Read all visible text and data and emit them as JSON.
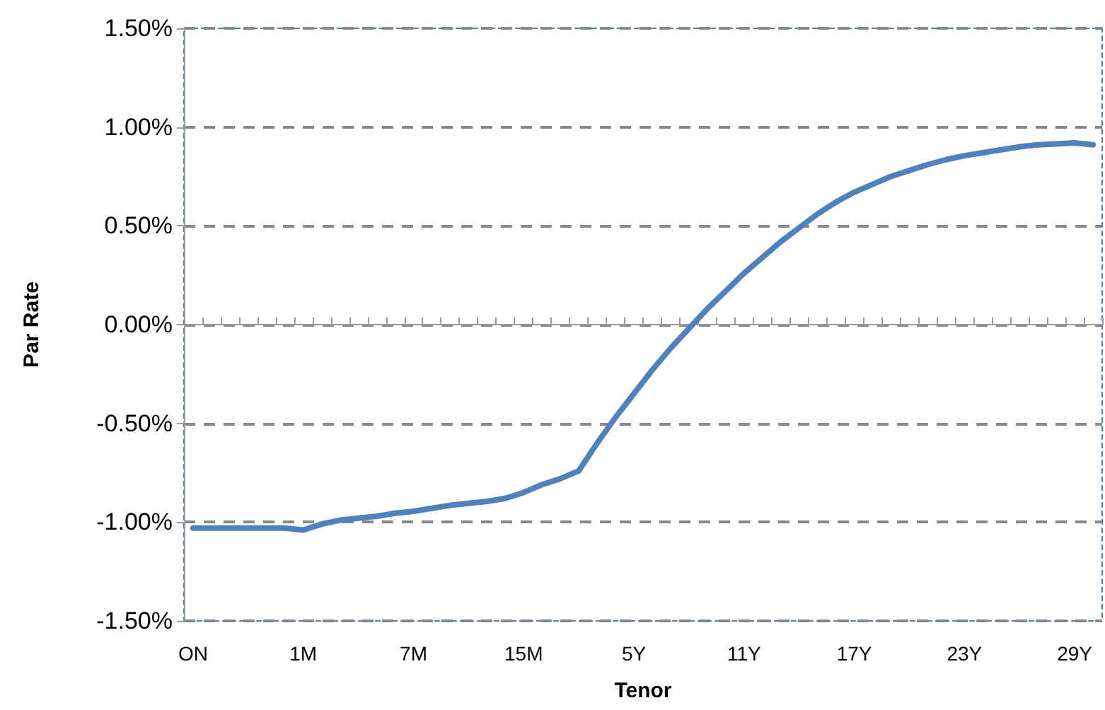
{
  "chart_data": {
    "type": "line",
    "xlabel": "Tenor",
    "ylabel": "Par Rate",
    "categories": [
      "ON",
      null,
      null,
      null,
      null,
      null,
      "1M",
      null,
      null,
      null,
      null,
      null,
      "7M",
      null,
      null,
      null,
      null,
      null,
      "15M",
      null,
      null,
      null,
      null,
      null,
      "5Y",
      null,
      null,
      null,
      null,
      null,
      "11Y",
      null,
      null,
      null,
      null,
      null,
      "17Y",
      null,
      null,
      null,
      null,
      null,
      "23Y",
      null,
      null,
      null,
      null,
      null,
      "29Y",
      null
    ],
    "series": [
      {
        "color": "#4f81bd",
        "values": [
          -1.03,
          -1.03,
          -1.03,
          -1.03,
          -1.03,
          -1.03,
          -1.04,
          -1.01,
          -0.99,
          -0.98,
          -0.97,
          -0.955,
          -0.945,
          -0.93,
          -0.915,
          -0.905,
          -0.895,
          -0.88,
          -0.85,
          -0.81,
          -0.78,
          -0.74,
          -0.6,
          -0.47,
          -0.35,
          -0.23,
          -0.12,
          -0.02,
          0.08,
          0.17,
          0.26,
          0.34,
          0.42,
          0.49,
          0.56,
          0.62,
          0.67,
          0.71,
          0.75,
          0.78,
          0.81,
          0.835,
          0.855,
          0.87,
          0.885,
          0.9,
          0.91,
          0.915,
          0.92,
          0.91
        ]
      }
    ],
    "ylim": [
      -1.5,
      1.5
    ],
    "yticks": [
      {
        "value": -1.5,
        "label": "-1.50%"
      },
      {
        "value": -1,
        "label": "-1.00%"
      },
      {
        "value": -0.5,
        "label": "-0.50%"
      },
      {
        "value": 0,
        "label": "0.00%"
      },
      {
        "value": 0.5,
        "label": "0.50%"
      },
      {
        "value": 1,
        "label": "1.00%"
      },
      {
        "value": 1.5,
        "label": "1.50%"
      }
    ],
    "grid": "y",
    "marker": "none",
    "line_style": "solid"
  }
}
